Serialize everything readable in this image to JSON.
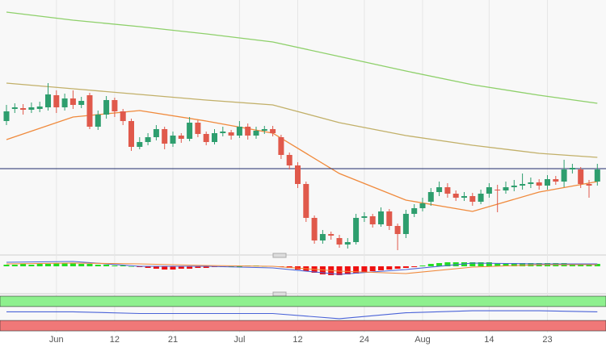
{
  "chart_data": {
    "type": "candlestick",
    "categories": [
      null,
      null,
      null,
      null,
      null,
      null,
      "Jun",
      null,
      null,
      null,
      null,
      null,
      null,
      "12",
      null,
      null,
      null,
      null,
      null,
      null,
      "21",
      null,
      null,
      null,
      null,
      null,
      null,
      null,
      "Jul",
      null,
      null,
      null,
      null,
      null,
      null,
      "12",
      null,
      null,
      null,
      null,
      null,
      null,
      null,
      "24",
      null,
      null,
      null,
      null,
      null,
      null,
      "Aug",
      null,
      null,
      null,
      null,
      null,
      null,
      null,
      "14",
      null,
      null,
      null,
      null,
      null,
      null,
      "23",
      null,
      null,
      null,
      null,
      null,
      null
    ],
    "open": [
      165,
      180,
      181,
      179,
      180,
      182,
      197,
      182,
      193,
      185,
      197,
      158,
      173,
      191,
      177,
      165,
      133,
      139,
      145,
      155,
      137,
      147,
      143,
      163,
      149,
      139,
      150,
      151,
      147,
      158,
      147,
      153,
      155,
      145,
      123,
      110,
      87,
      45,
      17,
      25,
      20,
      12,
      15,
      45,
      47,
      37,
      53,
      35,
      25,
      50,
      57,
      65,
      77,
      83,
      75,
      70,
      72,
      65,
      75,
      80,
      79,
      83,
      85,
      87,
      89,
      85,
      93,
      90,
      105,
      105,
      87,
      90
    ],
    "close": [
      177,
      182,
      179,
      182,
      183,
      198,
      182,
      193,
      185,
      190,
      158,
      173,
      191,
      177,
      165,
      133,
      139,
      145,
      155,
      137,
      147,
      143,
      163,
      149,
      139,
      150,
      152,
      147,
      158,
      147,
      153,
      155,
      150,
      123,
      110,
      87,
      45,
      17,
      25,
      23,
      12,
      15,
      45,
      47,
      37,
      53,
      35,
      25,
      50,
      57,
      63,
      77,
      83,
      75,
      70,
      72,
      65,
      75,
      83,
      79,
      83,
      85,
      87,
      89,
      85,
      93,
      90,
      105,
      107,
      87,
      85,
      105
    ],
    "high": [
      185,
      187,
      186,
      188,
      189,
      212,
      203,
      199,
      203,
      195,
      200,
      178,
      196,
      194,
      180,
      168,
      145,
      150,
      160,
      158,
      152,
      150,
      170,
      166,
      152,
      155,
      158,
      154,
      165,
      162,
      158,
      159,
      159,
      148,
      126,
      114,
      90,
      48,
      30,
      28,
      24,
      20,
      50,
      52,
      50,
      58,
      56,
      38,
      55,
      62,
      70,
      82,
      90,
      88,
      79,
      77,
      76,
      80,
      88,
      86,
      90,
      92,
      100,
      95,
      93,
      98,
      97,
      117,
      112,
      108,
      92,
      112
    ],
    "low": [
      160,
      175,
      173,
      175,
      176,
      178,
      175,
      178,
      180,
      181,
      155,
      154,
      168,
      170,
      160,
      128,
      130,
      135,
      141,
      130,
      133,
      138,
      140,
      145,
      135,
      136,
      146,
      142,
      144,
      142,
      143,
      149,
      146,
      118,
      105,
      82,
      40,
      13,
      13,
      18,
      8,
      7,
      12,
      40,
      33,
      34,
      30,
      5,
      20,
      46,
      53,
      60,
      72,
      70,
      66,
      66,
      60,
      62,
      70,
      52,
      75,
      78,
      80,
      82,
      80,
      80,
      86,
      83,
      100,
      82,
      70,
      85
    ],
    "up_color": "#2e9e6e",
    "down_color": "#e0594b",
    "ylim": [
      0,
      315
    ],
    "level": 106,
    "level_color": "#1f2d6b",
    "overlay_x": [
      0,
      8,
      16,
      24,
      32,
      40,
      48,
      56,
      64,
      71
    ],
    "overlays": [
      {
        "color": "#f08a3c",
        "values": [
          142,
          170,
          178,
          165,
          150,
          100,
          67,
          53,
          77,
          90
        ]
      },
      {
        "color": "#c2b069",
        "values": [
          212,
          205,
          198,
          191,
          185,
          163,
          147,
          135,
          125,
          120
        ]
      },
      {
        "color": "#8ed06a",
        "values": [
          300,
          290,
          282,
          273,
          263,
          245,
          227,
          210,
          197,
          187
        ]
      }
    ],
    "grid": true,
    "macd": {
      "ylim": [
        -12,
        12
      ],
      "values": [
        2,
        2,
        3,
        2,
        3,
        3,
        4,
        4,
        4,
        3,
        3,
        2,
        2,
        1,
        1,
        0,
        -1,
        -2,
        -3,
        -4,
        -4,
        -3,
        -3,
        -2,
        -2,
        -1,
        -1,
        0,
        0,
        1,
        1,
        0,
        0,
        -1,
        -2,
        -4,
        -6,
        -8,
        -10,
        -11,
        -11,
        -10,
        -9,
        -8,
        -6,
        -5,
        -4,
        -3,
        -2,
        -1,
        1,
        3,
        4,
        5,
        5,
        5,
        5,
        5,
        5,
        4,
        4,
        4,
        4,
        4,
        4,
        4,
        4,
        4,
        3,
        3,
        3,
        3
      ],
      "pos_color": "#22dd22",
      "neg_color": "#ee1111",
      "lines": [
        {
          "color": "#4a63d8",
          "values": [
            5,
            6,
            0,
            0,
            -2,
            -10,
            -4,
            4,
            3,
            3
          ]
        },
        {
          "color": "#f08a3c",
          "values": [
            3,
            4,
            3,
            1,
            0,
            -6,
            -9,
            -1,
            2,
            2
          ]
        }
      ]
    },
    "oscillator": {
      "ylim": [
        0,
        100
      ],
      "levels": [
        30,
        70
      ],
      "color": "#4a63d8",
      "values": [
        55,
        55,
        50,
        50,
        50,
        35,
        52,
        58,
        58,
        55
      ]
    }
  }
}
